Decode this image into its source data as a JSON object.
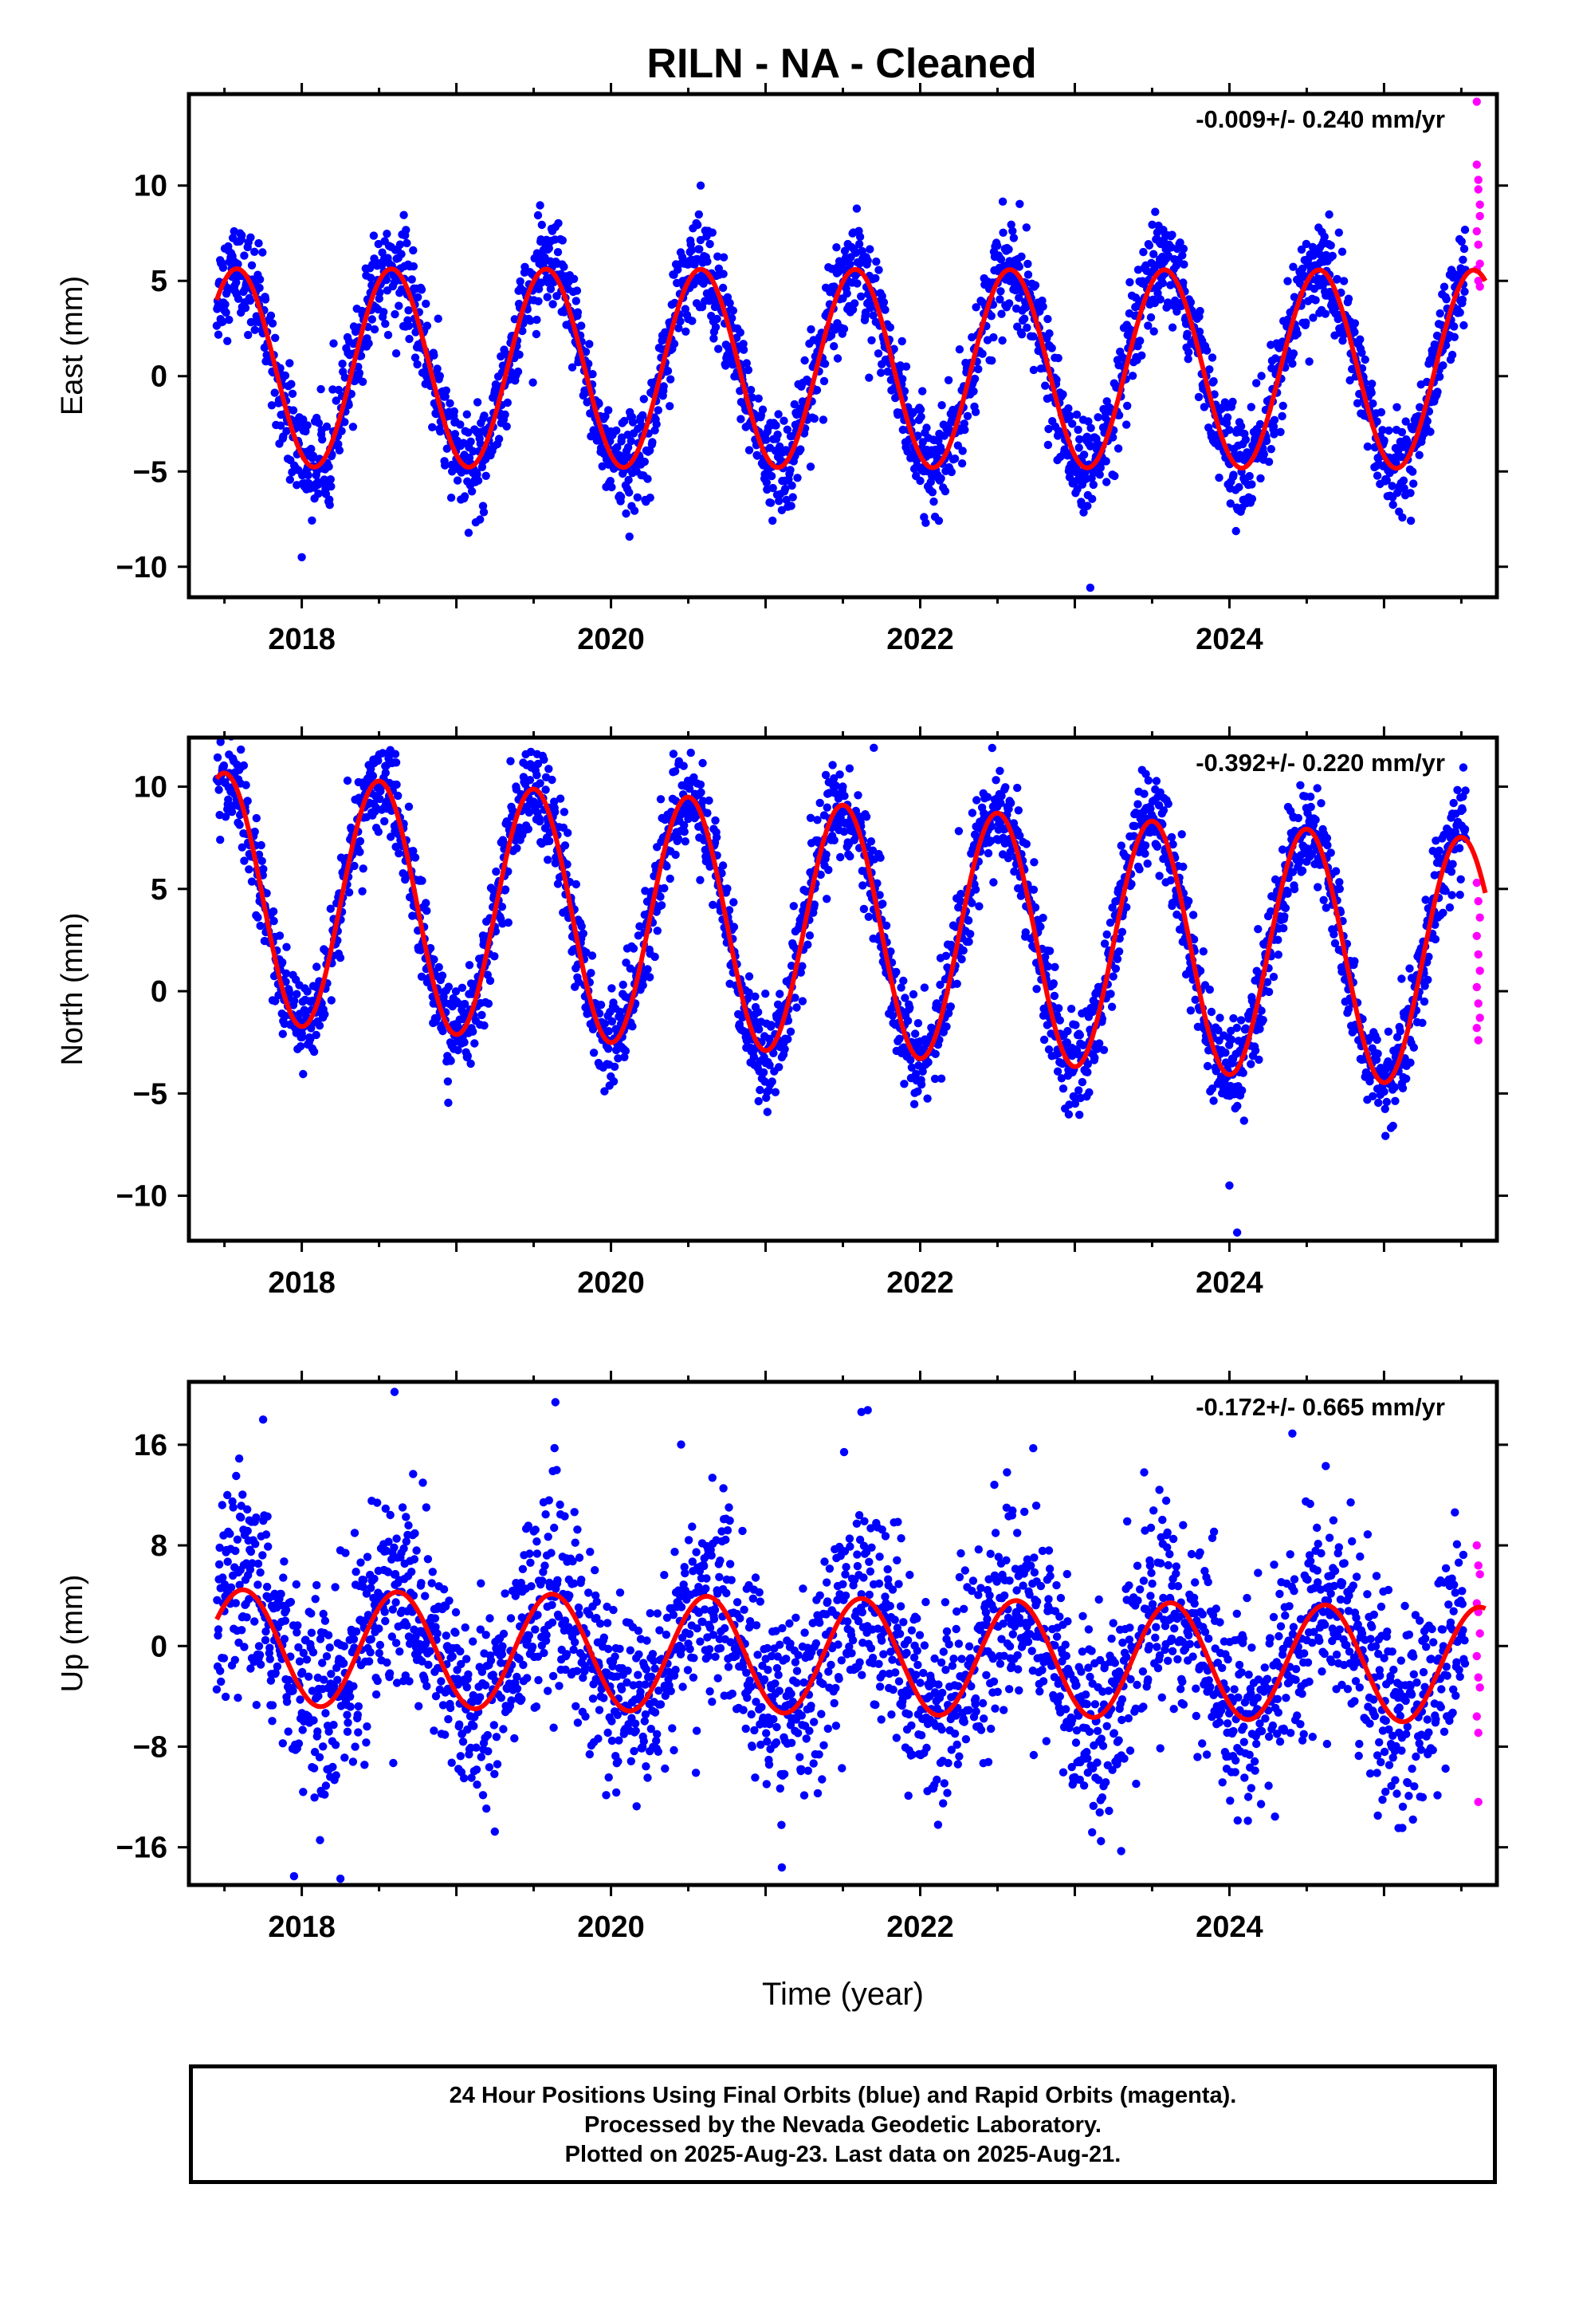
{
  "title": "RILN  - NA - Cleaned",
  "colors": {
    "final": "#0000ff",
    "rapid": "#ff00ff",
    "model": "#ff0000",
    "frame": "#000000"
  },
  "chart_data": [
    {
      "type": "scatter",
      "component": "East",
      "ylabel": "East (mm)",
      "xlabel": "",
      "rate_label": "-0.009+/- 0.240 mm/yr",
      "xlim": [
        2017.27,
        2025.73
      ],
      "ylim": [
        -11.6,
        14.8
      ],
      "x_ticks": [
        2018,
        2020,
        2022,
        2024
      ],
      "y_ticks": [
        -10,
        -5,
        0,
        5,
        10
      ],
      "grid": false,
      "series": [
        {
          "kind": "final-orbits",
          "x_range": [
            2017.45,
            2025.53
          ],
          "model": {
            "offset": 0.4,
            "amplitude": 5.2,
            "peak_phase": 0.58,
            "trend": -0.009
          },
          "scatter_mm": 1.3
        },
        {
          "kind": "rapid-orbits",
          "points": [
            [
              2025.6,
              14.4
            ],
            [
              2025.6,
              11.1
            ],
            [
              2025.61,
              10.3
            ],
            [
              2025.61,
              9.8
            ],
            [
              2025.62,
              9.0
            ],
            [
              2025.62,
              8.4
            ],
            [
              2025.6,
              7.6
            ],
            [
              2025.61,
              6.9
            ],
            [
              2025.62,
              5.9
            ],
            [
              2025.6,
              5.6
            ],
            [
              2025.61,
              5.0
            ],
            [
              2025.62,
              4.7
            ]
          ]
        }
      ],
      "outliers": [
        [
          2023.1,
          -11.1
        ],
        [
          2020.58,
          10.0
        ],
        [
          2018.0,
          -9.5
        ]
      ]
    },
    {
      "type": "scatter",
      "component": "North",
      "ylabel": "North (mm)",
      "xlabel": "",
      "rate_label": "-0.392+/- 0.220 mm/yr",
      "xlim": [
        2017.27,
        2025.73
      ],
      "ylim": [
        -12.2,
        12.4
      ],
      "x_ticks": [
        2018,
        2020,
        2022,
        2024
      ],
      "y_ticks": [
        -10,
        -5,
        0,
        5,
        10
      ],
      "grid": false,
      "series": [
        {
          "kind": "final-orbits",
          "x_range": [
            2017.45,
            2025.53
          ],
          "model": {
            "offset": 3.0,
            "amplitude": 6.1,
            "peak_phase": 0.5,
            "trend": -0.392
          },
          "scatter_mm": 1.2
        },
        {
          "kind": "rapid-orbits",
          "points": [
            [
              2025.6,
              5.3
            ],
            [
              2025.61,
              4.4
            ],
            [
              2025.62,
              3.6
            ],
            [
              2025.6,
              2.7
            ],
            [
              2025.61,
              1.8
            ],
            [
              2025.62,
              1.0
            ],
            [
              2025.6,
              0.2
            ],
            [
              2025.61,
              -0.6
            ],
            [
              2025.62,
              -1.3
            ],
            [
              2025.6,
              -1.8
            ],
            [
              2025.61,
              -2.4
            ]
          ]
        }
      ],
      "outliers": [
        [
          2024.05,
          -11.8
        ],
        [
          2021.7,
          11.9
        ],
        [
          2024.0,
          -9.5
        ]
      ]
    },
    {
      "type": "scatter",
      "component": "Up",
      "ylabel": "Up (mm)",
      "xlabel": "Time (year)",
      "rate_label": "-0.172+/- 0.665 mm/yr",
      "xlim": [
        2017.27,
        2025.73
      ],
      "ylim": [
        -19.0,
        21.0
      ],
      "x_ticks": [
        2018,
        2020,
        2022,
        2024
      ],
      "y_ticks": [
        -16,
        -8,
        0,
        8,
        16
      ],
      "grid": false,
      "series": [
        {
          "kind": "final-orbits",
          "x_range": [
            2017.45,
            2025.53
          ],
          "model": {
            "offset": -0.8,
            "amplitude": 4.6,
            "peak_phase": 0.62,
            "trend": -0.172
          },
          "scatter_mm": 4.0
        },
        {
          "kind": "rapid-orbits",
          "points": [
            [
              2025.6,
              8.0
            ],
            [
              2025.61,
              6.4
            ],
            [
              2025.62,
              5.7
            ],
            [
              2025.6,
              3.4
            ],
            [
              2025.61,
              2.7
            ],
            [
              2025.62,
              1.0
            ],
            [
              2025.6,
              -0.8
            ],
            [
              2025.61,
              -2.5
            ],
            [
              2025.62,
              -3.3
            ],
            [
              2025.6,
              -5.6
            ],
            [
              2025.61,
              -6.9
            ],
            [
              2025.61,
              -12.4
            ]
          ]
        }
      ],
      "outliers": [
        [
          2018.6,
          20.2
        ],
        [
          2017.75,
          18.0
        ],
        [
          2021.62,
          18.6
        ],
        [
          2017.95,
          -18.3
        ],
        [
          2018.25,
          -18.5
        ],
        [
          2023.3,
          -16.3
        ]
      ]
    }
  ],
  "footer": {
    "line1": "24 Hour Positions Using Final Orbits (blue) and Rapid Orbits (magenta).",
    "line2": "Processed by the Nevada Geodetic Laboratory.",
    "line3": "Plotted on 2025-Aug-23. Last data on 2025-Aug-21."
  }
}
